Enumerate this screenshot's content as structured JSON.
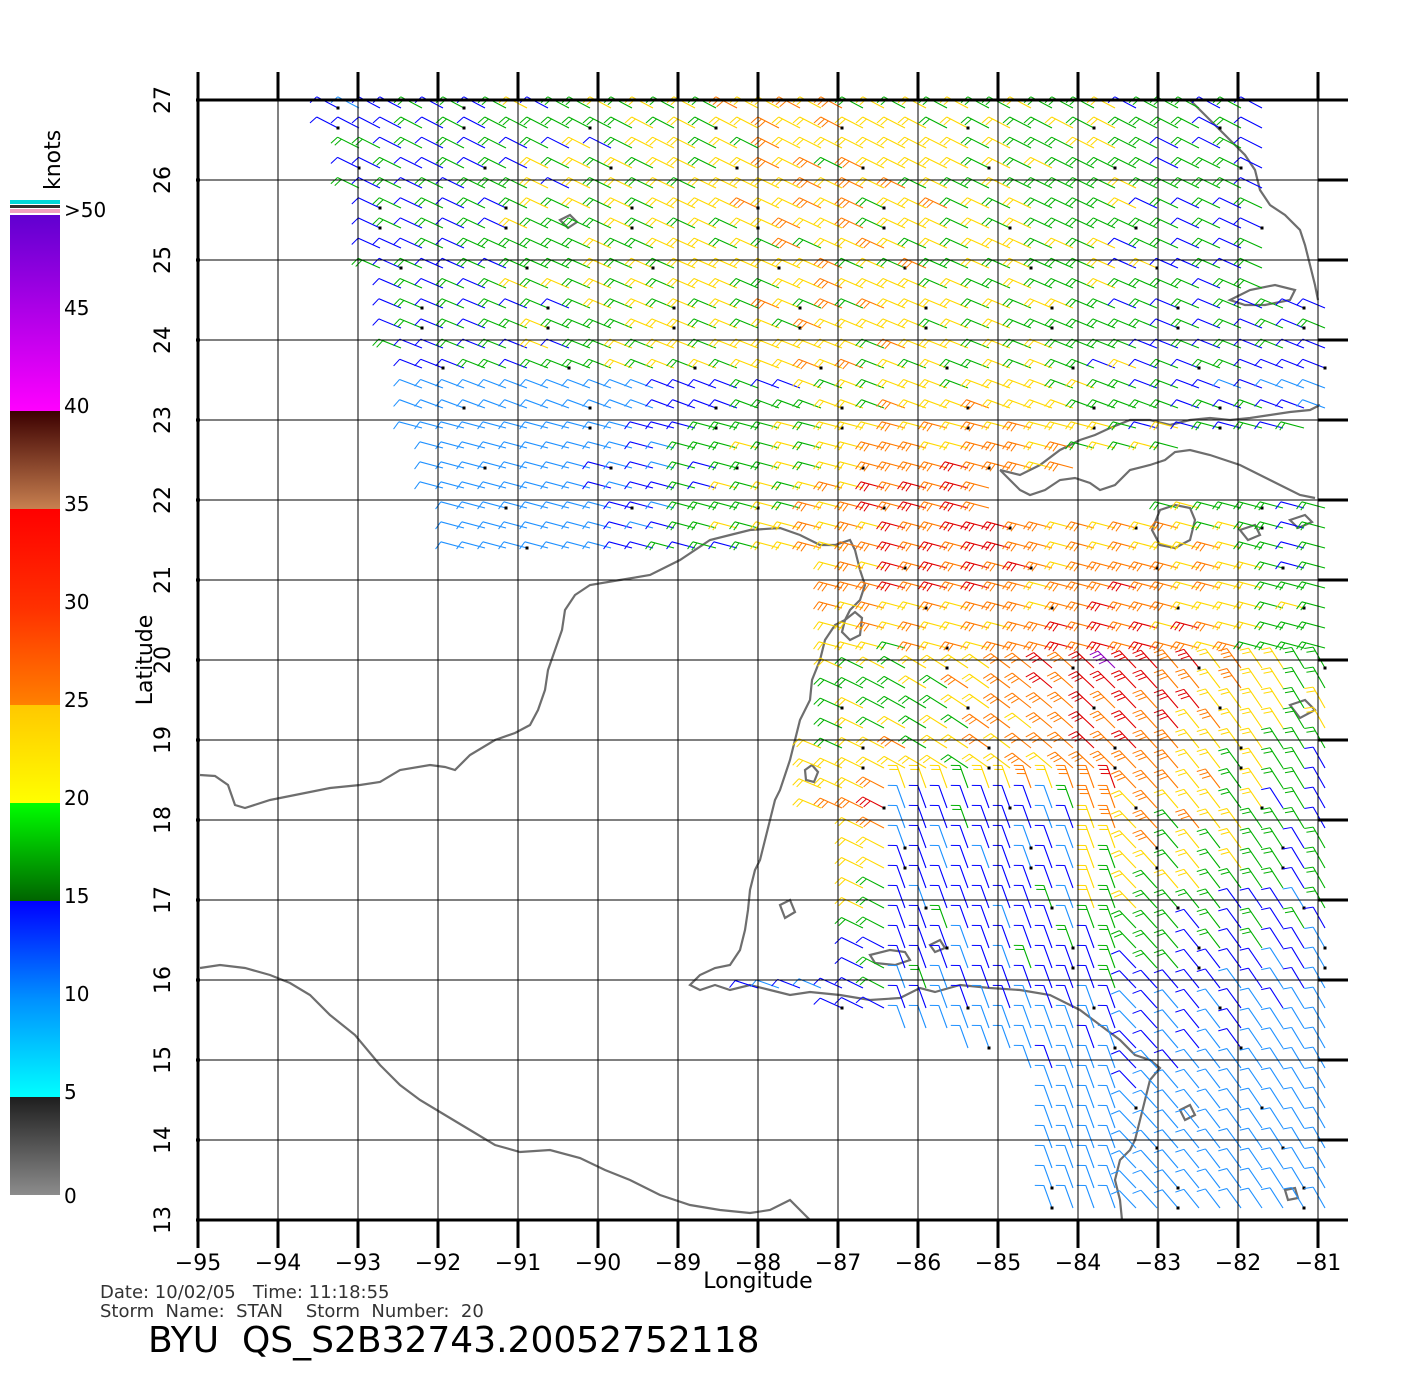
{
  "map": {
    "lon_range": [
      -95,
      -80.6
    ],
    "lat_range": [
      13,
      27
    ],
    "lon_ticks": [
      -95,
      -94,
      -93,
      -92,
      -91,
      -90,
      -89,
      -88,
      -87,
      -86,
      -85,
      -84,
      -83,
      -82,
      -81
    ],
    "lat_ticks": [
      13,
      14,
      15,
      16,
      17,
      18,
      19,
      20,
      21,
      22,
      23,
      24,
      25,
      26,
      27
    ],
    "xlabel": "Longitude",
    "ylabel": "Latitude",
    "grid": true,
    "coast_color": "#6e6e6e"
  },
  "colorbar": {
    "unit_label": "knots",
    "tick_labels": [
      "0",
      "5",
      "10",
      "15",
      "20",
      "25",
      "30",
      "35",
      "40",
      "45",
      ">50"
    ],
    "stops": [
      {
        "value": 0,
        "color": "#8c8c8c"
      },
      {
        "value": 5,
        "color": "#1e1e1e"
      },
      {
        "value": 5,
        "color": "#00ffff"
      },
      {
        "value": 10,
        "color": "#0090ff"
      },
      {
        "value": 15,
        "color": "#0000ff"
      },
      {
        "value": 15,
        "color": "#006400"
      },
      {
        "value": 20,
        "color": "#00ff00"
      },
      {
        "value": 20,
        "color": "#ffff00"
      },
      {
        "value": 25,
        "color": "#ffc800"
      },
      {
        "value": 25,
        "color": "#ff8000"
      },
      {
        "value": 30,
        "color": "#ff3000"
      },
      {
        "value": 35,
        "color": "#ff0000"
      },
      {
        "value": 35,
        "color": "#c88050"
      },
      {
        "value": 40,
        "color": "#3c0000"
      },
      {
        "value": 40,
        "color": "#ff00ff"
      },
      {
        "value": 50,
        "color": "#6000d0"
      }
    ]
  },
  "info": {
    "line1": "Date: 10/02/05   Time: 11:18:55",
    "line2": "Storm  Name:  STAN    Storm  Number:  20",
    "title": "BYU  QS_S2B32743.20052752118"
  }
}
